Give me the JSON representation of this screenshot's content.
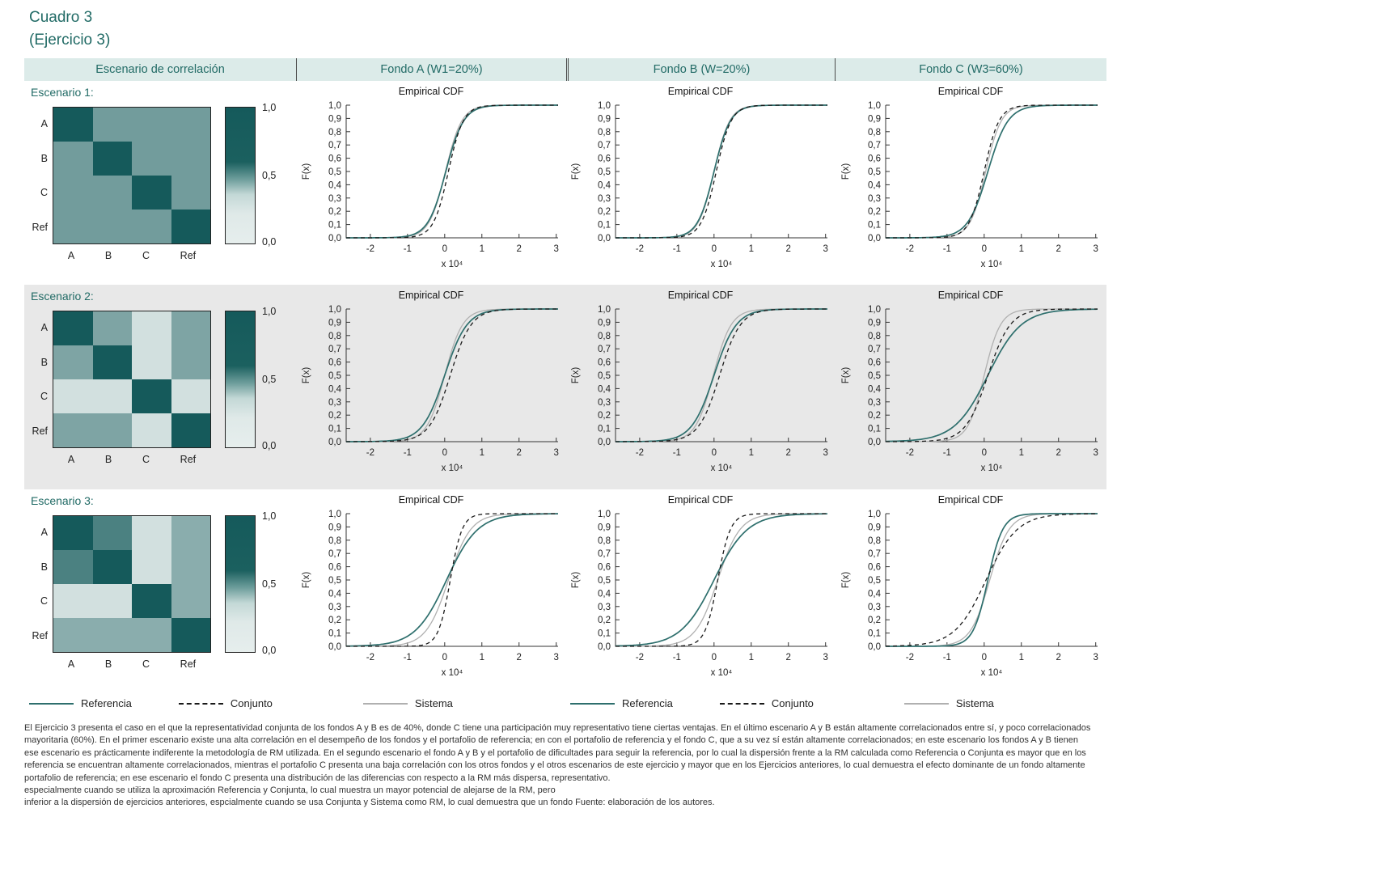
{
  "title": {
    "line1": "Cuadro 3",
    "line2": "(Ejercicio 3)"
  },
  "columns": [
    "Escenario de correlación",
    "Fondo A (W1=20%)",
    "Fondo B (W=20%)",
    "Fondo C (W3=60%)"
  ],
  "colors": {
    "accent": "#226b66",
    "header_bg": "#dcebe9",
    "row_alt_bg": "#e8e8e8",
    "heat_dark": "#155a5b",
    "heat_light": "#dfe9e8",
    "axis": "#333333"
  },
  "legend": {
    "items": [
      "Referencia",
      "Conjunto",
      "Sistema"
    ]
  },
  "chart_data": {
    "type": "line",
    "subtype": "empirical-cdf-grid",
    "panel_title": "Empirical CDF",
    "ylabel": "F(x)",
    "ylim": [
      0,
      1
    ],
    "y_ticks": [
      "1,0",
      "0,9",
      "0,8",
      "0,7",
      "0,6",
      "0,5",
      "0,4",
      "0,3",
      "0,2",
      "0,1",
      "0,0"
    ],
    "x_ticks": [
      "-2",
      "-1",
      "0",
      "1",
      "2",
      "3"
    ],
    "x_tick_values": [
      -2,
      -1,
      0,
      1,
      2,
      3
    ],
    "x_unit": "x 10⁴",
    "x_range": [
      -2.65,
      3.05
    ],
    "colorbar_ticks": [
      "1,0",
      "0,5",
      "0,0"
    ],
    "heatmap_labels": [
      "A",
      "B",
      "C",
      "Ref"
    ],
    "draw_order": [
      "Sistema",
      "Referencia",
      "Conjunto"
    ],
    "series_styles": {
      "Referencia": {
        "color": "#2e6f6d",
        "dash": "",
        "width": 1.7
      },
      "Conjunto": {
        "color": "#1a1a1a",
        "dash": "5,4",
        "width": 1.3
      },
      "Sistema": {
        "color": "#b0b0b0",
        "dash": "",
        "width": 1.3
      }
    },
    "rows": [
      {
        "label": "Escenario 1:",
        "correlation_matrix": [
          [
            1,
            0.65,
            0.65,
            0.65
          ],
          [
            0.65,
            1,
            0.65,
            0.65
          ],
          [
            0.65,
            0.65,
            1,
            0.65
          ],
          [
            0.65,
            0.65,
            0.65,
            1
          ]
        ],
        "panels": [
          {
            "fund": "Fondo A",
            "series": [
              {
                "name": "Referencia",
                "mu": 0.03,
                "sigma": 0.24
              },
              {
                "name": "Conjunto",
                "mu": 0.1,
                "sigma": 0.2
              },
              {
                "name": "Sistema",
                "mu": 0.02,
                "sigma": 0.22
              }
            ]
          },
          {
            "fund": "Fondo B",
            "series": [
              {
                "name": "Referencia",
                "mu": 0.0,
                "sigma": 0.22
              },
              {
                "name": "Conjunto",
                "mu": 0.06,
                "sigma": 0.2
              },
              {
                "name": "Sistema",
                "mu": 0.0,
                "sigma": 0.21
              }
            ]
          },
          {
            "fund": "Fondo C",
            "series": [
              {
                "name": "Referencia",
                "mu": 0.1,
                "sigma": 0.27
              },
              {
                "name": "Conjunto",
                "mu": 0.0,
                "sigma": 0.2
              },
              {
                "name": "Sistema",
                "mu": 0.04,
                "sigma": 0.21
              }
            ]
          }
        ]
      },
      {
        "label": "Escenario 2:",
        "correlation_matrix": [
          [
            1,
            0.6,
            0.2,
            0.6
          ],
          [
            0.6,
            1,
            0.2,
            0.6
          ],
          [
            0.2,
            0.2,
            1,
            0.2
          ],
          [
            0.6,
            0.6,
            0.2,
            1
          ]
        ],
        "panels": [
          {
            "fund": "Fondo A",
            "series": [
              {
                "name": "Referencia",
                "mu": 0.0,
                "sigma": 0.3
              },
              {
                "name": "Conjunto",
                "mu": 0.15,
                "sigma": 0.28
              },
              {
                "name": "Sistema",
                "mu": 0.0,
                "sigma": 0.24
              }
            ]
          },
          {
            "fund": "Fondo B",
            "series": [
              {
                "name": "Referencia",
                "mu": 0.0,
                "sigma": 0.3
              },
              {
                "name": "Conjunto",
                "mu": 0.15,
                "sigma": 0.28
              },
              {
                "name": "Sistema",
                "mu": -0.02,
                "sigma": 0.24
              }
            ]
          },
          {
            "fund": "Fondo C",
            "series": [
              {
                "name": "Referencia",
                "mu": 0.1,
                "sigma": 0.45
              },
              {
                "name": "Conjunto",
                "mu": 0.1,
                "sigma": 0.3
              },
              {
                "name": "Sistema",
                "mu": 0.0,
                "sigma": 0.22
              }
            ]
          }
        ]
      },
      {
        "label": "Escenario 3:",
        "correlation_matrix": [
          [
            1,
            0.8,
            0.2,
            0.55
          ],
          [
            0.8,
            1,
            0.2,
            0.55
          ],
          [
            0.2,
            0.2,
            1,
            0.55
          ],
          [
            0.55,
            0.55,
            0.55,
            1
          ]
        ],
        "panels": [
          {
            "fund": "Fondo A",
            "series": [
              {
                "name": "Referencia",
                "mu": 0.05,
                "sigma": 0.42
              },
              {
                "name": "Conjunto",
                "mu": 0.15,
                "sigma": 0.16
              },
              {
                "name": "Sistema",
                "mu": 0.1,
                "sigma": 0.3
              }
            ]
          },
          {
            "fund": "Fondo B",
            "series": [
              {
                "name": "Referencia",
                "mu": 0.0,
                "sigma": 0.45
              },
              {
                "name": "Conjunto",
                "mu": 0.1,
                "sigma": 0.17
              },
              {
                "name": "Sistema",
                "mu": 0.1,
                "sigma": 0.3
              }
            ]
          },
          {
            "fund": "Fondo C",
            "series": [
              {
                "name": "Referencia",
                "mu": 0.1,
                "sigma": 0.2
              },
              {
                "name": "Conjunto",
                "mu": 0.05,
                "sigma": 0.42
              },
              {
                "name": "Sistema",
                "mu": 0.15,
                "sigma": 0.26
              }
            ]
          }
        ]
      }
    ]
  },
  "footer": {
    "lines": [
      "El Ejercicio 3 presenta el caso en el que la representatividad conjunta de los fondos A y B es de 40%, donde C tiene una participación muy representativo tiene ciertas ventajas. En el último escenario A y B están altamente correlacionados entre sí, y poco correlacionados",
      "mayoritaria (60%). En el primer escenario existe una alta correlación en el desempeño de los fondos y el portafolio de referencia; en con el portafolio de referencia y el fondo C, que a su vez sí están altamente correlacionados; en este escenario los fondos A y B tienen",
      "ese escenario es prácticamente indiferente la metodología de RM utilizada. En el segundo escenario el fondo A y B y el portafolio de dificultades para seguir la referencia, por lo cual la dispersión frente a la RM calculada como Referencia o Conjunta es mayor que en los",
      "referencia se encuentran altamente correlacionados, mientras el portafolio C presenta una baja correlación con los otros fondos y el otros escenarios de este ejercicio y mayor que en los Ejercicios anteriores, lo cual demuestra el efecto dominante de un fondo altamente",
      "portafolio de referencia; en ese escenario el fondo C presenta una distribución de las diferencias con respecto a la RM más dispersa, representativo.",
      "especialmente cuando se utiliza la aproximación Referencia y Conjunta, lo cual muestra un mayor potencial de alejarse de la RM, pero",
      "inferior a la dispersión de ejercicios anteriores, espcialmente cuando se usa Conjunta y Sistema como RM, lo cual demuestra que un fondo   Fuente: elaboración de los autores."
    ]
  }
}
